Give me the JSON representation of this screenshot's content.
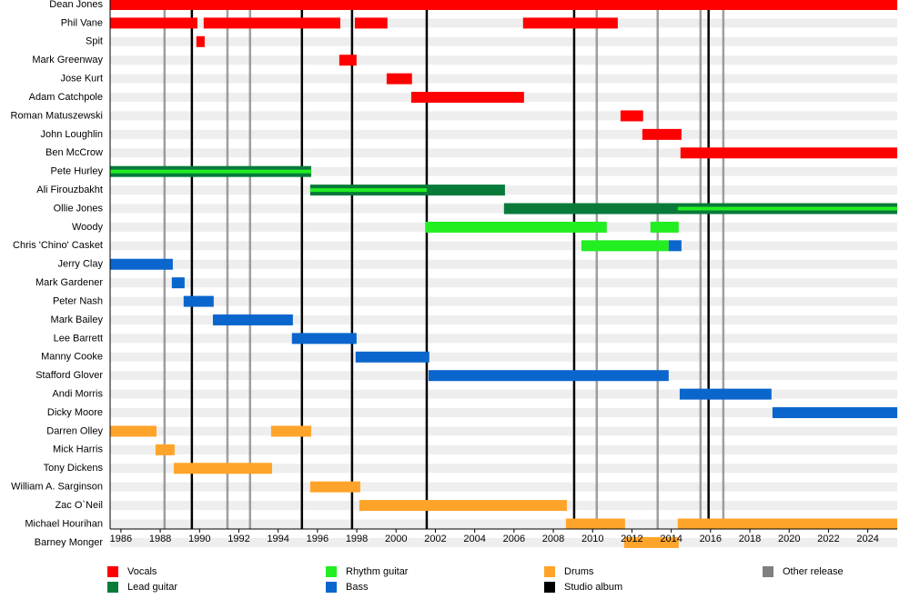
{
  "chart_data": {
    "type": "timeline",
    "categories": [
      "Dean Jones",
      "Phil Vane",
      "Spit",
      "Mark Greenway",
      "Jose Kurt",
      "Adam Catchpole",
      "Roman Matuszewski",
      "John Loughlin",
      "Ben McCrow",
      "Pete Hurley",
      "Ali Firouzbakht",
      "Ollie Jones",
      "Woody",
      "Chris 'Chino' Casket",
      "Jerry Clay",
      "Mark Gardener",
      "Peter Nash",
      "Mark Bailey",
      "Lee Barrett",
      "Manny Cooke",
      "Stafford Glover",
      "Andi Morris",
      "Dicky Moore",
      "Darren Olley",
      "Mick Harris",
      "Tony Dickens",
      "William A. Sarginson",
      "Zac O`Neil",
      "Michael Hourihan",
      "Barney Monger"
    ],
    "series": [
      {
        "name": "Vocals",
        "color": "#ff0000",
        "values": [
          [
            [
              1985.45,
              2025.5
            ]
          ],
          [
            [
              1985.45,
              1989.89
            ],
            [
              1990.21,
              1997.16
            ],
            [
              1997.9,
              1999.56
            ],
            [
              2006.46,
              2011.28
            ]
          ],
          [
            [
              1989.84,
              1990.26
            ]
          ],
          [
            [
              1997.11,
              1997.99
            ]
          ],
          [
            [
              1999.52,
              2000.81
            ]
          ],
          [
            [
              2000.77,
              2006.51
            ]
          ],
          [
            [
              2011.42,
              2012.57
            ]
          ],
          [
            [
              2012.53,
              2014.52
            ]
          ],
          [
            [
              2014.47,
              2025.5
            ]
          ],
          [],
          [],
          [],
          [],
          [],
          [],
          [],
          [],
          [],
          [],
          [],
          [],
          [],
          [],
          [],
          [],
          [],
          [],
          [],
          [],
          []
        ]
      },
      {
        "name": "Lead guitar",
        "color": "#087a3a",
        "values": [
          [],
          [],
          [],
          [],
          [],
          [],
          [],
          [],
          [],
          [
            [
              1985.45,
              1995.68
            ]
          ],
          [
            [
              1995.63,
              2005.54
            ]
          ],
          [
            [
              2005.49,
              2025.5
            ]
          ],
          [],
          [],
          [],
          [],
          [],
          [],
          [],
          [],
          [],
          [],
          [],
          [],
          [],
          [],
          [],
          [],
          [],
          []
        ]
      },
      {
        "name": "Rhythm guitar",
        "color": "#22ee22",
        "values": [
          [],
          [],
          [],
          [],
          [],
          [],
          [],
          [],
          [],
          [
            [
              1985.45,
              1995.68
            ]
          ],
          [
            [
              1995.63,
              2001.56
            ]
          ],
          [
            [
              2014.33,
              2025.5
            ]
          ],
          [
            [
              2001.51,
              2010.72
            ],
            [
              2012.94,
              2014.38
            ]
          ],
          [
            [
              2009.43,
              2013.87
            ]
          ],
          [],
          [],
          [],
          [],
          [],
          [],
          [],
          [],
          [],
          [],
          [],
          [],
          [],
          [],
          [],
          []
        ]
      },
      {
        "name": "Bass",
        "color": "#0a66cc",
        "values": [
          [],
          [],
          [],
          [],
          [],
          [],
          [],
          [],
          [],
          [],
          [],
          [],
          [],
          [
            [
              2013.87,
              2014.52
            ]
          ],
          [
            [
              1985.45,
              1988.64
            ]
          ],
          [
            [
              1988.59,
              1989.24
            ]
          ],
          [
            [
              1989.19,
              1990.72
            ]
          ],
          [
            [
              1990.68,
              1994.75
            ]
          ],
          [
            [
              1994.7,
              1997.99
            ]
          ],
          [
            [
              1997.94,
              2001.69
            ]
          ],
          [
            [
              2001.65,
              2013.87
            ]
          ],
          [
            [
              2014.43,
              2019.1
            ]
          ],
          [
            [
              2019.15,
              2025.5
            ]
          ],
          [],
          [],
          [],
          [],
          [],
          [],
          []
        ]
      },
      {
        "name": "Drums",
        "color": "#ffa42a",
        "values": [
          [],
          [],
          [],
          [],
          [],
          [],
          [],
          [],
          [],
          [],
          [],
          [],
          [],
          [],
          [],
          [],
          [],
          [],
          [],
          [],
          [],
          [],
          [],
          [
            [
              1985.45,
              1987.81
            ],
            [
              1993.64,
              1995.68
            ]
          ],
          [
            [
              1987.76,
              1988.73
            ]
          ],
          [
            [
              1988.69,
              1993.69
            ]
          ],
          [
            [
              1995.63,
              1998.18
            ]
          ],
          [
            [
              1998.13,
              2008.69
            ]
          ],
          [
            [
              2008.64,
              2011.65
            ],
            [
              2014.33,
              2025.5
            ]
          ],
          [
            [
              2011.6,
              2014.38
            ]
          ]
        ]
      }
    ],
    "events": [
      {
        "name": "Studio album",
        "color": "#000000",
        "values": [
          1989.61,
          1995.21,
          1997.76,
          2001.56,
          2009.06,
          2015.9
        ]
      },
      {
        "name": "Other release",
        "color": "#808080",
        "values": [
          1988.22,
          1991.42,
          1992.57,
          2010.21,
          2013.31,
          2015.49,
          2016.65
        ]
      }
    ],
    "xlim": [
      1985.45,
      2025.5
    ],
    "xticks": [
      1986,
      1988,
      1990,
      1992,
      1994,
      1996,
      1998,
      2000,
      2002,
      2004,
      2006,
      2008,
      2010,
      2012,
      2014,
      2016,
      2018,
      2020,
      2022,
      2024
    ]
  }
}
